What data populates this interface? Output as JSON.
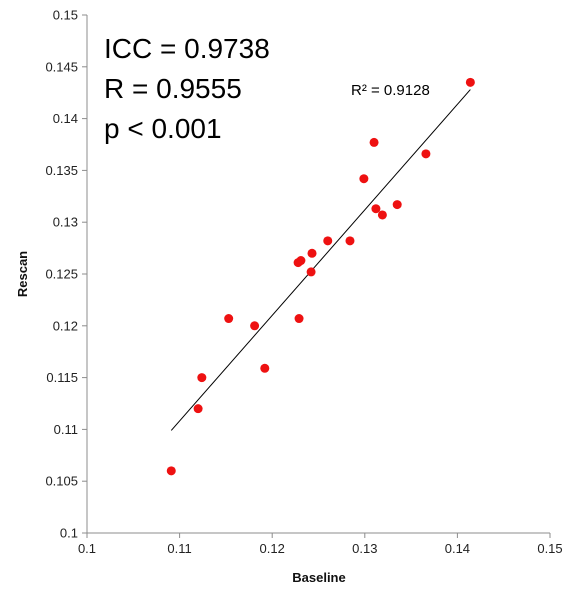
{
  "chart_data": {
    "type": "scatter",
    "title": "",
    "xlabel": "Baseline",
    "ylabel": "Rescan",
    "xlim": [
      0.1,
      0.15
    ],
    "ylim": [
      0.1,
      0.15
    ],
    "x_ticks": [
      "0.1",
      "0.11",
      "0.12",
      "0.13",
      "0.14",
      "0.15"
    ],
    "y_ticks": [
      "0.1",
      "0.105",
      "0.11",
      "0.115",
      "0.12",
      "0.125",
      "0.13",
      "0.135",
      "0.14",
      "0.145",
      "0.15"
    ],
    "grid": false,
    "legend": "none",
    "point_color": "#ee1111",
    "line_color": "#000000",
    "points": [
      {
        "x": 0.1091,
        "y": 0.106
      },
      {
        "x": 0.112,
        "y": 0.112
      },
      {
        "x": 0.1124,
        "y": 0.115
      },
      {
        "x": 0.1153,
        "y": 0.1207
      },
      {
        "x": 0.1181,
        "y": 0.12
      },
      {
        "x": 0.1192,
        "y": 0.1159
      },
      {
        "x": 0.1229,
        "y": 0.1207
      },
      {
        "x": 0.1228,
        "y": 0.1261
      },
      {
        "x": 0.1231,
        "y": 0.1263
      },
      {
        "x": 0.1243,
        "y": 0.127
      },
      {
        "x": 0.1242,
        "y": 0.1252
      },
      {
        "x": 0.126,
        "y": 0.1282
      },
      {
        "x": 0.1284,
        "y": 0.1282
      },
      {
        "x": 0.1299,
        "y": 0.1342
      },
      {
        "x": 0.131,
        "y": 0.1377
      },
      {
        "x": 0.1312,
        "y": 0.1313
      },
      {
        "x": 0.1319,
        "y": 0.1307
      },
      {
        "x": 0.1335,
        "y": 0.1317
      },
      {
        "x": 0.1366,
        "y": 0.1366
      },
      {
        "x": 0.1414,
        "y": 0.1435
      }
    ],
    "trendline": {
      "x_start": 0.1091,
      "y_start": 0.1099,
      "x_end": 0.1414,
      "y_end": 0.1428,
      "label": "R² = 0.9128"
    },
    "annotations": [
      "ICC = 0.9738",
      "R = 0.9555",
      "p < 0.001"
    ]
  }
}
